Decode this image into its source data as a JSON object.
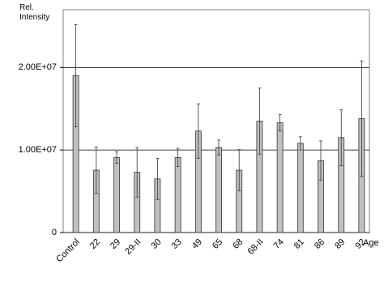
{
  "chart_data": {
    "type": "bar",
    "y_label": "Rel. Intensity",
    "x_label": "Age",
    "categories": [
      "Control",
      "22",
      "29",
      "29-II",
      "30",
      "33",
      "49",
      "65",
      "68",
      "68-II",
      "74",
      "81",
      "86",
      "89",
      "92"
    ],
    "values": [
      19000000,
      7550000,
      9100000,
      7300000,
      6500000,
      9100000,
      12300000,
      10300000,
      7550000,
      13500000,
      13300000,
      10800000,
      8700000,
      11500000,
      13800000
    ],
    "errors": [
      6200000,
      2800000,
      700000,
      3000000,
      2500000,
      1100000,
      3300000,
      900000,
      2500000,
      4000000,
      1000000,
      800000,
      2400000,
      3400000,
      7000000
    ],
    "color": "#c0c0c0",
    "ylim": [
      0,
      27000000
    ],
    "yticks": [
      0,
      {
        "value": 10000000,
        "label": "1.00E+07"
      },
      {
        "value": 20000000,
        "label": "2.00E+07"
      }
    ],
    "grid": true
  }
}
